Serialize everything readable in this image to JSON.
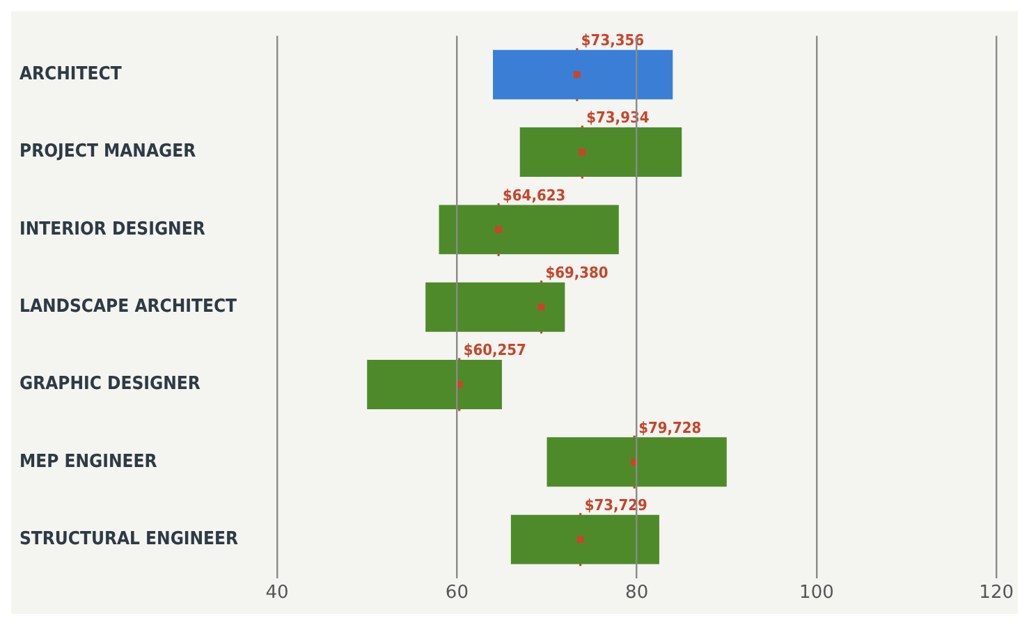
{
  "chart_data": {
    "type": "bar",
    "orientation": "horizontal",
    "categories": [
      "ARCHITECT",
      "PROJECT MANAGER",
      "INTERIOR DESIGNER",
      "LANDSCAPE ARCHITECT",
      "GRAPHIC DESIGNER",
      "MEP ENGINEER",
      "STRUCTURAL ENGINEER"
    ],
    "series": [
      {
        "colors": [
          "#3a7fd5",
          "#4f8a2a",
          "#4f8a2a",
          "#4f8a2a",
          "#4f8a2a",
          "#4f8a2a",
          "#4f8a2a"
        ],
        "base": [
          64,
          67,
          58,
          56.5,
          50,
          70,
          66
        ],
        "values": [
          20,
          18,
          20,
          15.5,
          15,
          20,
          16.5
        ]
      },
      {
        "type": "scatter",
        "color": "#c8452a",
        "values": [
          73.356,
          73.934,
          64.623,
          69.38,
          60.257,
          79.728,
          73.729
        ]
      }
    ],
    "annotations": [
      {
        "text": "$73,356",
        "x": 73.356,
        "y": "ARCHITECT"
      },
      {
        "text": "$73,934",
        "x": 73.934,
        "y": "PROJECT MANAGER"
      },
      {
        "text": "$64,623",
        "x": 64.623,
        "y": "INTERIOR DESIGNER"
      },
      {
        "text": "$69,380",
        "x": 69.38,
        "y": "LANDSCAPE ARCHITECT"
      },
      {
        "text": "$60,257",
        "x": 60.257,
        "y": "GRAPHIC DESIGNER"
      },
      {
        "text": "$79,728",
        "x": 79.728,
        "y": "MEP ENGINEER"
      },
      {
        "text": "$73,729",
        "x": 73.729,
        "y": "STRUCTURAL ENGINEER"
      }
    ],
    "xlim": [
      40,
      120
    ],
    "xticks": [
      40,
      60,
      80,
      100,
      120
    ],
    "grid": "x"
  }
}
